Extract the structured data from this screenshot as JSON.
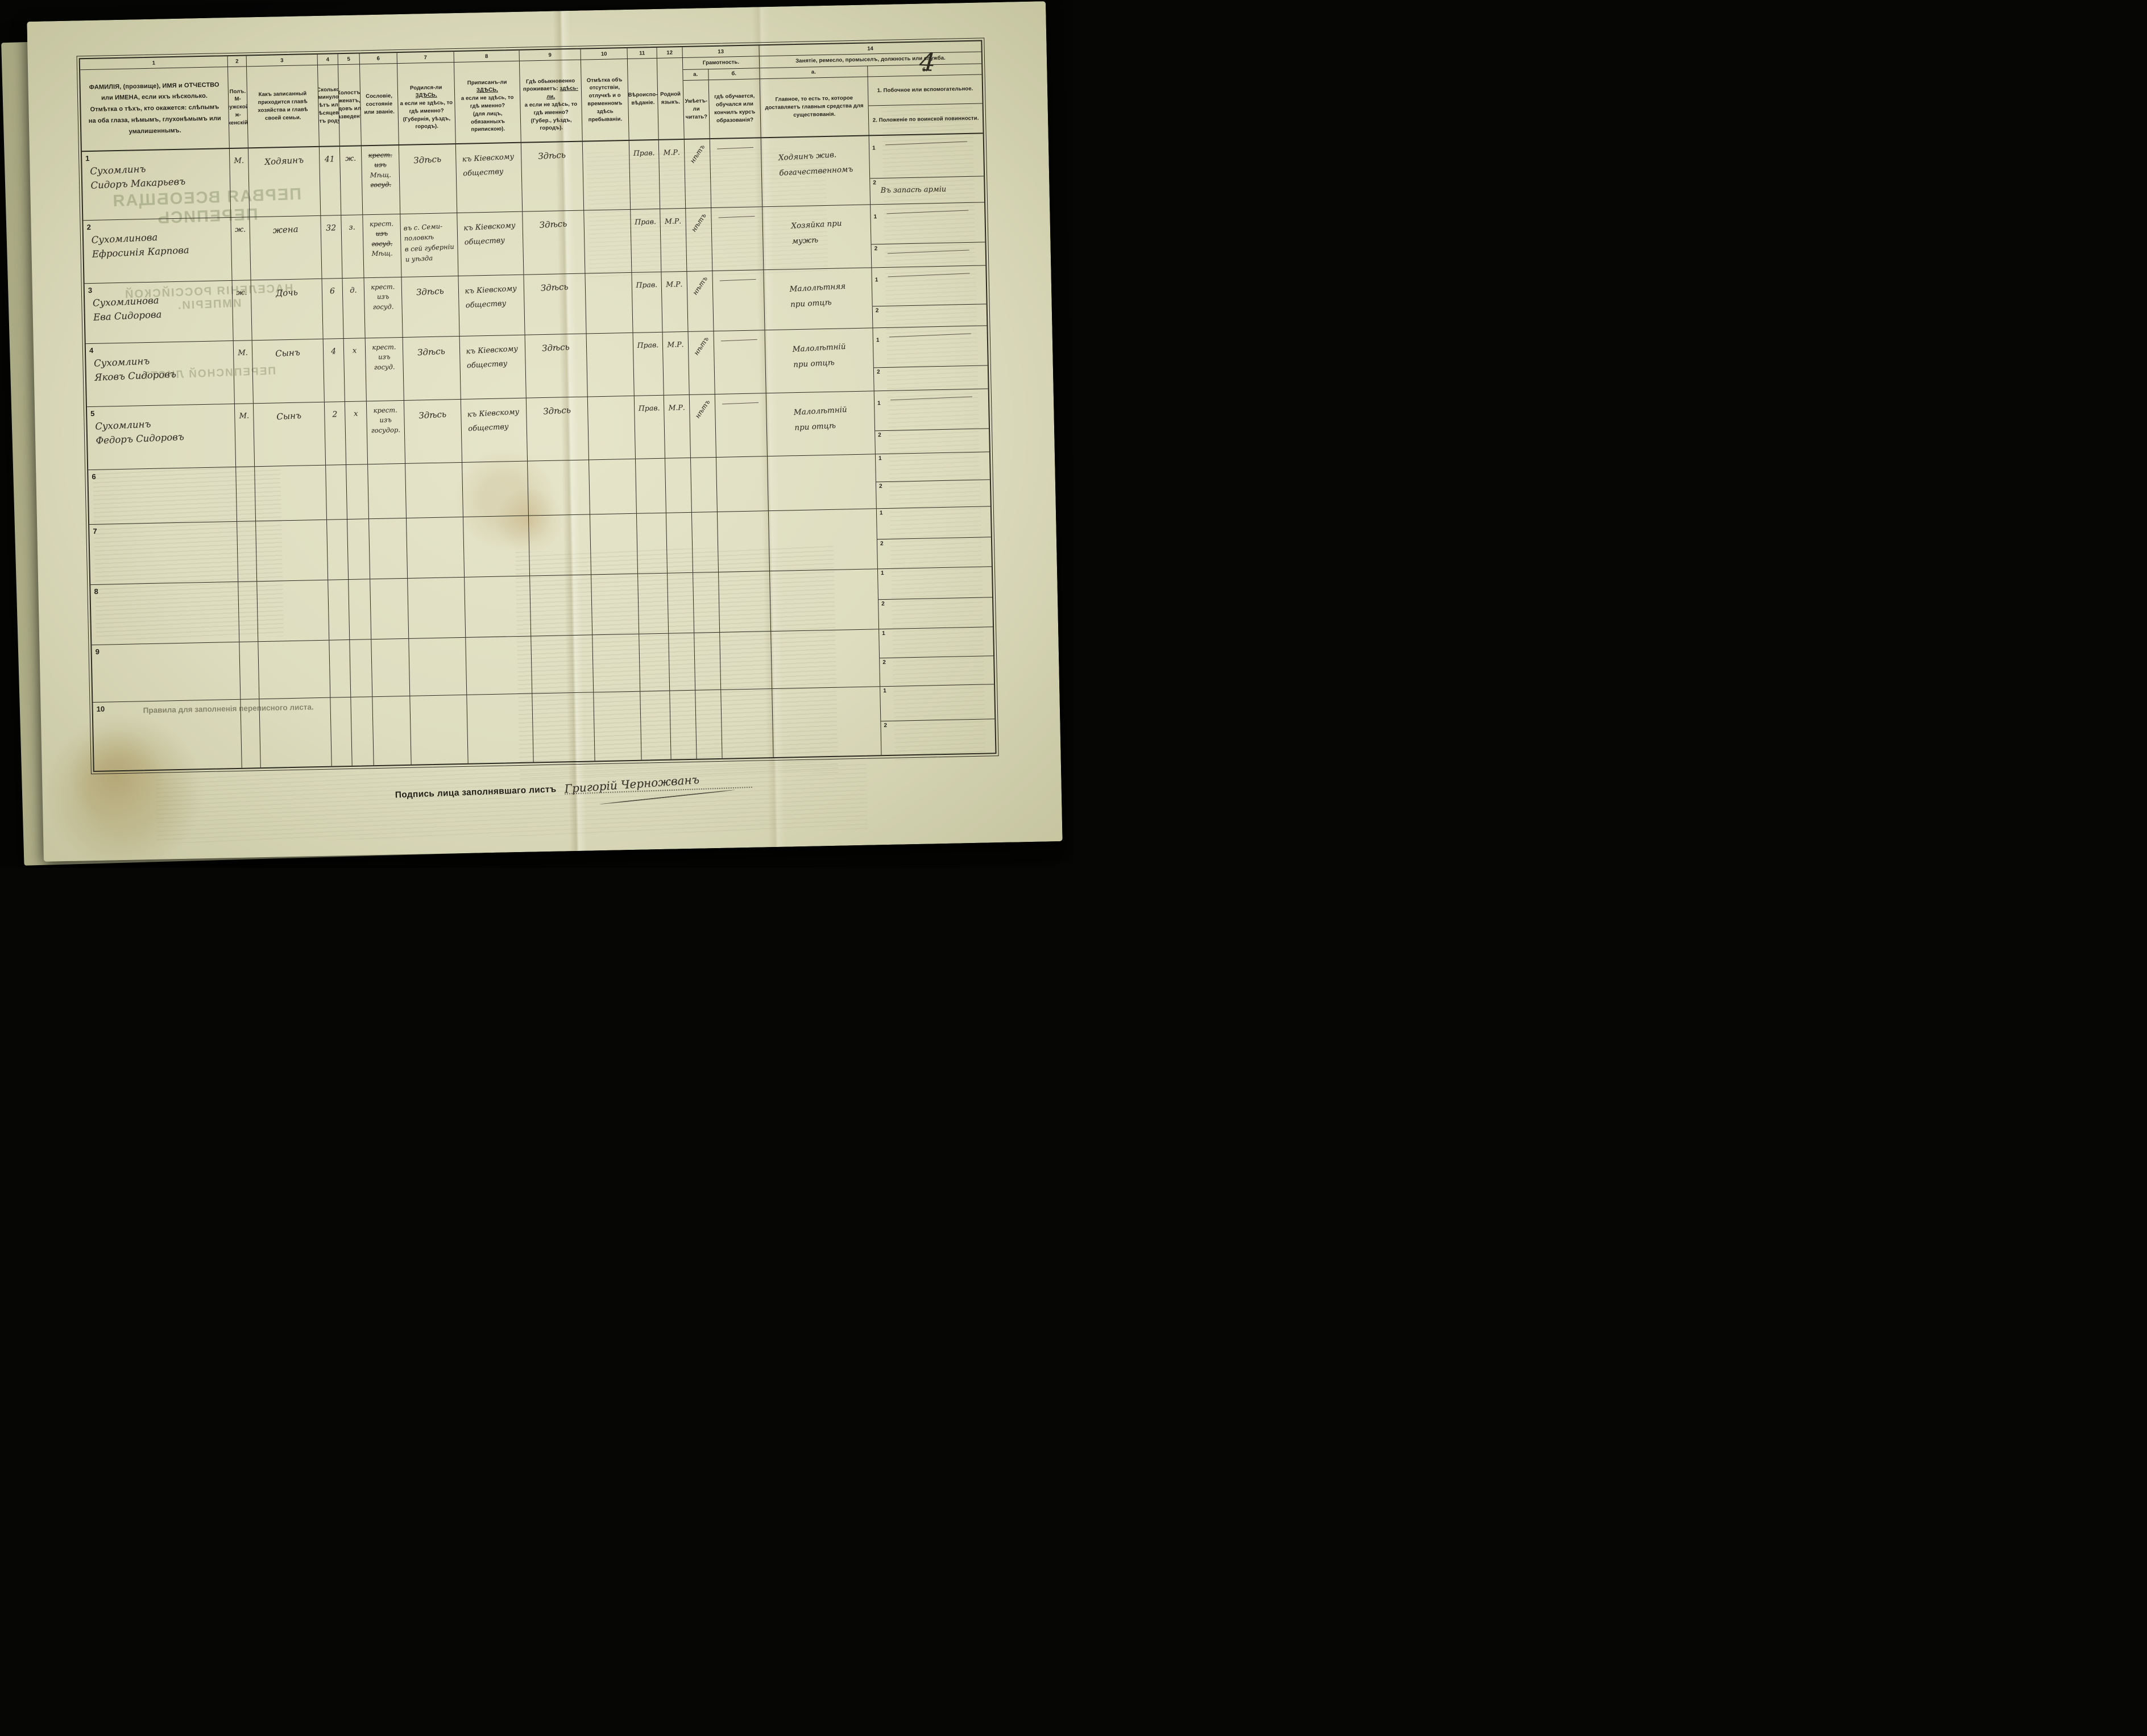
{
  "page": {
    "number": "4",
    "signature_label": "Подпись лица заполнявшаго листъ",
    "signature_name": "Григорій Черножванъ"
  },
  "bleedthrough": {
    "title1": "ПЕРВАЯ ВСЕОБЩАЯ ПЕРЕПИСЬ",
    "title2": "НАСЕЛЕНІЯ РОССІЙСКОЙ ИМПЕРІИ.",
    "title3": "ПЕРЕПИСНОЙ ЛИСТЪ",
    "rules": "Правила для заполненія переписного листа."
  },
  "header": {
    "numbers": [
      "1",
      "2",
      "3",
      "4",
      "5",
      "6",
      "7",
      "8",
      "9",
      "10",
      "11",
      "12",
      "13",
      "14"
    ],
    "c1": "ФАМИЛІЯ, (прозвище), ИМЯ и ОТЧЕСТВО или ИМЕНА, если ихъ нѣсколько.\nОтмѣтка о тѣхъ, кто окажется: слѣпымъ на оба глаза, нѣмымъ, глухонѣмымъ или умалишеннымъ.",
    "c2": [
      "Полъ.",
      "М-мужской.",
      "ж-женскій."
    ],
    "c3": "Какъ записанный приходится главѣ хозяйства и главѣ своей семьи.",
    "c4": "Сколько минуло лѣтъ или мѣсяцевъ отъ роду.",
    "c5": "Холостъ, женатъ, вдовъ или разведенъ.",
    "c6": "Сословіе, состояніе или званіе.",
    "c7": {
      "pre": "Родился-ли ",
      "u": "ЗДѢСЬ,",
      "post": "а если не здѣсь, то гдѣ именно?\n(Губернія, уѣздъ, городъ)."
    },
    "c8": {
      "pre": "Приписанъ-ли ",
      "u": "ЗДѢСЬ,",
      "post": "а если не здѣсь, то гдѣ именно?\n(для лицъ, обязанныхъ припискою)."
    },
    "c9": {
      "pre": "Гдѣ обыкновенно проживаетъ: ",
      "u": "здѣсь-ли,",
      "post": "а если не здѣсь, то гдѣ именно?\n(Губер., уѣздъ, городъ)."
    },
    "c10": "Отмѣтка объ отсутствіи, отлучкѣ и о временномъ здѣсь пребываніи.",
    "c11": "Вѣроиспо-вѣданіе.",
    "c12": "Родной языкъ.",
    "c13": {
      "title": "Грамотность.",
      "a": "а.",
      "b": "б.",
      "a_text": "Умѣетъ-ли читать?",
      "b_text": "гдѣ обучается, обучался или кончилъ курсъ образованія?"
    },
    "c14": {
      "title": "Занятіе, ремесло, промыселъ, должность или служба.",
      "a": "а.",
      "b": "б.",
      "a_text": "Главное, то есть то, которое доставляетъ главныя средства для существованія.",
      "b1_text": "1. Побочное или вспомогательное.",
      "b2_text": "2. Положеніе по воинской повинности."
    },
    "sub_labels": [
      "1",
      "2"
    ]
  },
  "rows": [
    {
      "num": "1",
      "name": [
        "Сухомлинъ",
        "Сидоръ Макарьевъ"
      ],
      "sex": "М.",
      "relation": "Ходяинъ",
      "age": "41",
      "marital": "ж.",
      "estate": [
        {
          "t": "крест.",
          "x": true
        },
        {
          "t": "изъ",
          "x": true
        },
        {
          "t": "Мѣщ.",
          "x": false
        },
        {
          "t": "госуд.",
          "x": true
        }
      ],
      "born": [
        "Здѣсь"
      ],
      "registered": [
        "къ Кіевскому",
        "обществу"
      ],
      "resides": "Здѣсь",
      "absence": "",
      "religion": "Прав.",
      "language": "М.Р.",
      "literacy_read": "нѣтъ",
      "literacy_edu": "—",
      "occupation_main": [
        "Ходяинъ жив.",
        "богачественномъ"
      ],
      "occupation_side": "—",
      "military": "Въ запасѣ арміи"
    },
    {
      "num": "2",
      "name": [
        "Сухомлинова",
        "Ефросинія Карпова"
      ],
      "sex": "ж.",
      "relation": "жена",
      "age": "32",
      "marital": "з.",
      "estate": [
        {
          "t": "крест.",
          "x": false
        },
        {
          "t": "изъ",
          "x": true
        },
        {
          "t": "госуд.",
          "x": true
        },
        {
          "t": "Мѣщ.",
          "x": false
        }
      ],
      "born": [
        "въ с. Семи-",
        "половкѣ",
        "в сей губерніи",
        "и уѣзда"
      ],
      "registered": [
        "къ Кіевскому",
        "обществу"
      ],
      "resides": "Здѣсь",
      "absence": "",
      "religion": "Прав.",
      "language": "М.Р.",
      "literacy_read": "нѣтъ",
      "literacy_edu": "—",
      "occupation_main": [
        "Хозяйка при",
        "мужѣ"
      ],
      "occupation_side": "—",
      "military": "—"
    },
    {
      "num": "3",
      "name": [
        "Сухомлинова",
        "Ева Сидорова"
      ],
      "sex": "ж.",
      "relation": "Дочь",
      "age": "6",
      "marital": "д.",
      "estate": [
        {
          "t": "крест.",
          "x": false
        },
        {
          "t": "изъ",
          "x": false
        },
        {
          "t": "госуд.",
          "x": false
        }
      ],
      "born": [
        "Здѣсь"
      ],
      "registered": [
        "къ Кіевскому",
        "обществу"
      ],
      "resides": "Здѣсь",
      "absence": "",
      "religion": "Прав.",
      "language": "М.Р.",
      "literacy_read": "нѣтъ",
      "literacy_edu": "—",
      "occupation_main": [
        "Малолѣтняя",
        "при отцѣ"
      ],
      "occupation_side": "—",
      "military": ""
    },
    {
      "num": "4",
      "name": [
        "Сухомлинъ",
        "Яковъ Сидоровъ"
      ],
      "sex": "М.",
      "relation": "Сынъ",
      "age": "4",
      "marital": "х",
      "estate": [
        {
          "t": "крест.",
          "x": false
        },
        {
          "t": "изъ",
          "x": false
        },
        {
          "t": "госуд.",
          "x": false
        }
      ],
      "born": [
        "Здѣсь"
      ],
      "registered": [
        "къ Кіевскому",
        "обществу"
      ],
      "resides": "Здѣсь",
      "absence": "",
      "religion": "Прав.",
      "language": "М.Р.",
      "literacy_read": "нѣтъ",
      "literacy_edu": "—",
      "occupation_main": [
        "Малолѣтній",
        "при отцѣ"
      ],
      "occupation_side": "—",
      "military": ""
    },
    {
      "num": "5",
      "name": [
        "Сухомлинъ",
        "Федоръ Сидоровъ"
      ],
      "sex": "М.",
      "relation": "Сынъ",
      "age": "2",
      "marital": "х",
      "estate": [
        {
          "t": "крест.",
          "x": false
        },
        {
          "t": "изъ",
          "x": false
        },
        {
          "t": "госудор.",
          "x": false
        }
      ],
      "born": [
        "Здѣсь"
      ],
      "registered": [
        "къ Кіевскому",
        "обществу"
      ],
      "resides": "Здѣсь",
      "absence": "",
      "religion": "Прав.",
      "language": "М.Р.",
      "literacy_read": "нѣтъ",
      "literacy_edu": "—",
      "occupation_main": [
        "Малолѣтній",
        "при отцѣ"
      ],
      "occupation_side": "—",
      "military": ""
    },
    {
      "num": "6",
      "name": [],
      "sex": "",
      "relation": "",
      "age": "",
      "marital": "",
      "estate": [],
      "born": [],
      "registered": [],
      "resides": "",
      "absence": "",
      "religion": "",
      "language": "",
      "literacy_read": "",
      "literacy_edu": "",
      "occupation_main": [],
      "occupation_side": "",
      "military": ""
    },
    {
      "num": "7",
      "name": [],
      "sex": "",
      "relation": "",
      "age": "",
      "marital": "",
      "estate": [],
      "born": [],
      "registered": [],
      "resides": "",
      "absence": "",
      "religion": "",
      "language": "",
      "literacy_read": "",
      "literacy_edu": "",
      "occupation_main": [],
      "occupation_side": "",
      "military": ""
    },
    {
      "num": "8",
      "name": [],
      "sex": "",
      "relation": "",
      "age": "",
      "marital": "",
      "estate": [],
      "born": [],
      "registered": [],
      "resides": "",
      "absence": "",
      "religion": "",
      "language": "",
      "literacy_read": "",
      "literacy_edu": "",
      "occupation_main": [],
      "occupation_side": "",
      "military": ""
    },
    {
      "num": "9",
      "name": [],
      "sex": "",
      "relation": "",
      "age": "",
      "marital": "",
      "estate": [],
      "born": [],
      "registered": [],
      "resides": "",
      "absence": "",
      "religion": "",
      "language": "",
      "literacy_read": "",
      "literacy_edu": "",
      "occupation_main": [],
      "occupation_side": "",
      "military": ""
    },
    {
      "num": "10",
      "name": [],
      "sex": "",
      "relation": "",
      "age": "",
      "marital": "",
      "estate": [],
      "born": [],
      "registered": [],
      "resides": "",
      "absence": "",
      "religion": "",
      "language": "",
      "literacy_read": "",
      "literacy_edu": "",
      "occupation_main": [],
      "occupation_side": "",
      "military": ""
    }
  ]
}
